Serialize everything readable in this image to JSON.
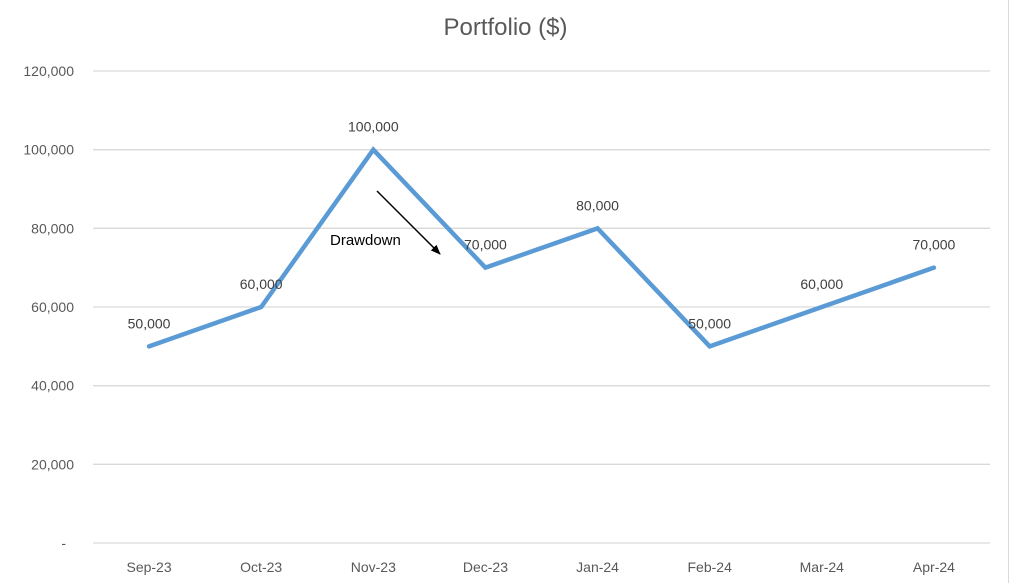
{
  "chart_data": {
    "type": "line",
    "title": "Portfolio ($)",
    "xlabel": "",
    "ylabel": "",
    "categories": [
      "Sep-23",
      "Oct-23",
      "Nov-23",
      "Dec-23",
      "Jan-24",
      "Feb-24",
      "Mar-24",
      "Apr-24"
    ],
    "series": [
      {
        "name": "Portfolio ($)",
        "values": [
          50000,
          60000,
          100000,
          70000,
          80000,
          50000,
          60000,
          70000
        ],
        "color": "#5b9bd5",
        "data_labels": [
          "50,000",
          "60,000",
          "100,000",
          "70,000",
          "80,000",
          "50,000",
          "60,000",
          "70,000"
        ]
      }
    ],
    "ylim": [
      0,
      120000
    ],
    "yticks": [
      0,
      20000,
      40000,
      60000,
      80000,
      100000,
      120000
    ],
    "ytick_labels": [
      "-",
      "20,000",
      "40,000",
      "60,000",
      "80,000",
      "100,000",
      "120,000"
    ],
    "grid": true,
    "legend": "none",
    "annotations": [
      {
        "text": "Drawdown",
        "type": "arrow",
        "from": "Nov-23 peak",
        "to": "Dec-23",
        "color": "#000000"
      }
    ]
  },
  "colors": {
    "line": "#5b9bd5",
    "grid": "#d9d9d9",
    "axis_text": "#595959",
    "title": "#595959"
  }
}
